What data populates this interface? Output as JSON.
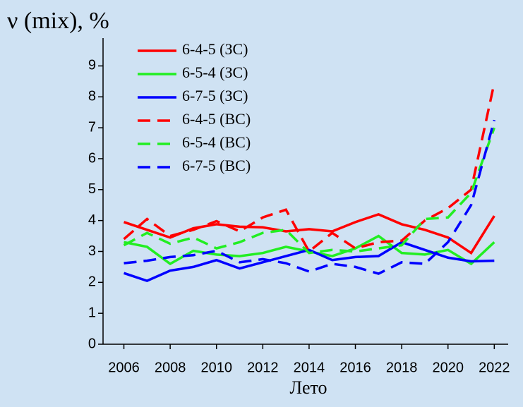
{
  "chart_data": {
    "type": "line",
    "y_label": "ν (mix), %",
    "x_label": "Лето",
    "x": [
      2006,
      2007,
      2008,
      2009,
      2010,
      2011,
      2012,
      2013,
      2014,
      2015,
      2016,
      2017,
      2018,
      2019,
      2020,
      2021,
      2022
    ],
    "xlim": [
      2005.1,
      2022.6
    ],
    "xticks": [
      2006,
      2008,
      2010,
      2012,
      2014,
      2016,
      2018,
      2020,
      2022
    ],
    "ylim": [
      0,
      9.9
    ],
    "yticks": [
      0,
      1,
      2,
      3,
      4,
      5,
      6,
      7,
      8,
      9
    ],
    "grid": false,
    "legend": "top-left",
    "series": [
      {
        "name": "6-4-5 (ЗС)",
        "color": "#ff0000",
        "linestyle": "solid",
        "values": [
          3.95,
          3.7,
          3.45,
          3.75,
          3.88,
          3.8,
          3.78,
          3.65,
          3.72,
          3.65,
          3.95,
          4.2,
          3.88,
          3.7,
          3.45,
          2.95,
          4.15
        ]
      },
      {
        "name": "6-5-4 (ЗС)",
        "color": "#22ee22",
        "linestyle": "solid",
        "values": [
          3.3,
          3.15,
          2.6,
          3.02,
          2.9,
          2.85,
          2.95,
          3.15,
          3.0,
          2.85,
          3.1,
          3.5,
          2.95,
          2.9,
          3.05,
          2.6,
          3.3
        ]
      },
      {
        "name": "6-7-5 (ЗС)",
        "color": "#0000ff",
        "linestyle": "solid",
        "values": [
          2.3,
          2.05,
          2.38,
          2.5,
          2.72,
          2.45,
          2.65,
          2.85,
          3.05,
          2.72,
          2.82,
          2.85,
          3.3,
          3.05,
          2.8,
          2.68,
          2.7
        ]
      },
      {
        "name": "6-4-5 (ВС)",
        "color": "#ff0000",
        "linestyle": "dashed",
        "values": [
          3.4,
          4.05,
          3.5,
          3.7,
          3.98,
          3.65,
          4.1,
          4.35,
          3.0,
          3.6,
          3.1,
          3.3,
          3.35,
          4.0,
          4.4,
          5.0,
          8.45
        ]
      },
      {
        "name": "6-5-4 (ВС)",
        "color": "#22ee22",
        "linestyle": "dashed",
        "values": [
          3.2,
          3.6,
          3.25,
          3.45,
          3.1,
          3.3,
          3.6,
          3.7,
          2.95,
          3.05,
          3.0,
          3.1,
          3.2,
          4.05,
          4.1,
          4.9,
          7.0
        ]
      },
      {
        "name": "6-7-5 (ВС)",
        "color": "#0000ff",
        "linestyle": "dashed",
        "values": [
          2.62,
          2.7,
          2.82,
          2.88,
          3.02,
          2.65,
          2.75,
          2.62,
          2.35,
          2.6,
          2.5,
          2.28,
          2.65,
          2.6,
          3.3,
          4.5,
          7.25
        ]
      }
    ]
  }
}
